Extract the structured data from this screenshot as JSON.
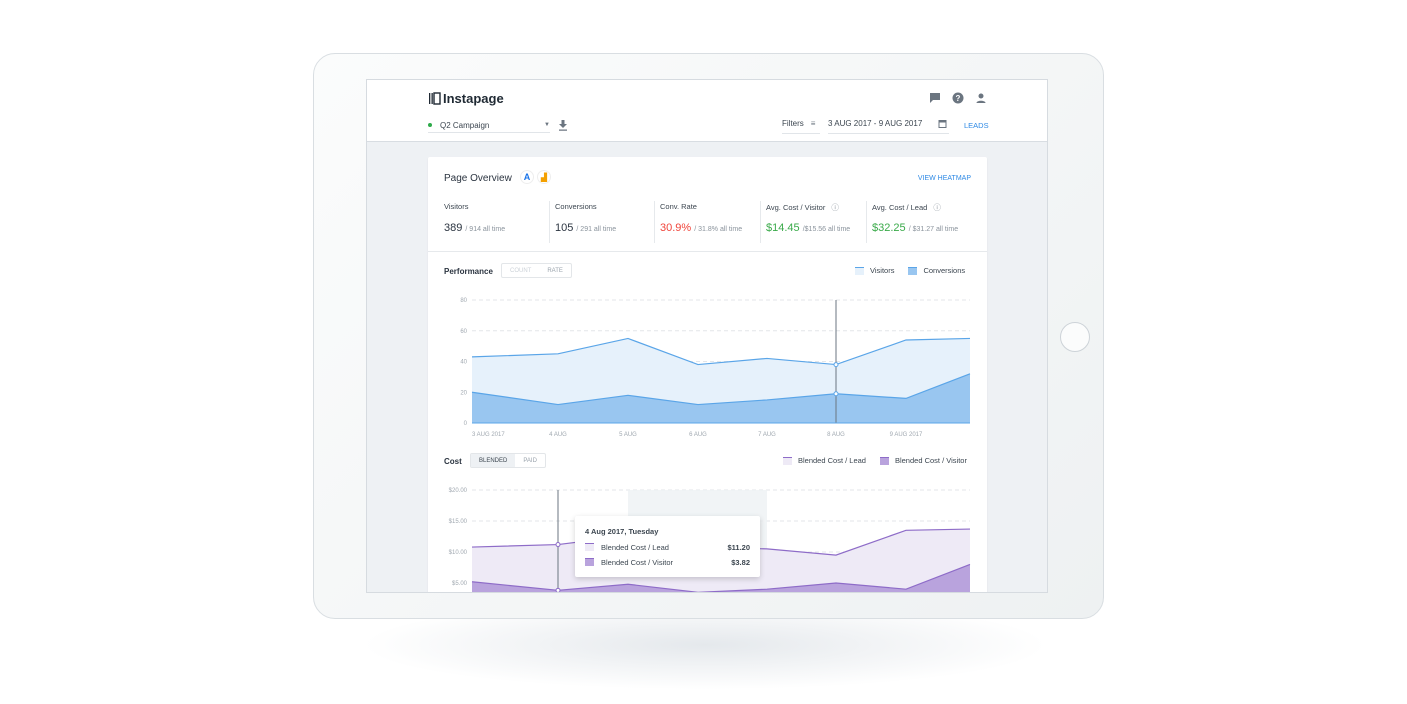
{
  "app": {
    "logo": "Instapage"
  },
  "header": {
    "campaign": "Q2 Campaign",
    "filters_label": "Filters",
    "date_range": "3 AUG 2017 - 9 AUG 2017",
    "leads_link": "LEADS",
    "icons": [
      "chat-icon",
      "help-icon",
      "user-icon",
      "download-icon",
      "filter-icon",
      "calendar-icon"
    ]
  },
  "overview": {
    "title": "Page Overview",
    "view_heatmap": "VIEW HEATMAP",
    "metrics": [
      {
        "label": "Visitors",
        "value": "389",
        "sub": "/ 914 all time",
        "color": "#2b3440"
      },
      {
        "label": "Conversions",
        "value": "105",
        "sub": "/ 291 all time",
        "color": "#2b3440"
      },
      {
        "label": "Conv. Rate",
        "value": "30.9%",
        "sub": "/ 31.8% all time",
        "color": "#f0443a"
      },
      {
        "label": "Avg. Cost / Visitor",
        "value": "$14.45",
        "sub": "/$15.56 all time",
        "color": "#3aaa4a"
      },
      {
        "label": "Avg. Cost / Lead",
        "value": "$32.25",
        "sub": "/ $31.27 all time",
        "color": "#3aaa4a"
      }
    ]
  },
  "colors": {
    "accent": "#2f8ae5",
    "blue_line": "#5aa5e8",
    "blue_light": "#e6f1fb",
    "blue_dark": "#99c6f0",
    "purple_line": "#8e6cc8",
    "purple_light": "#eeeaf6",
    "purple_dark": "#b9a3dd"
  },
  "chart_data": [
    {
      "type": "area",
      "title": "Performance",
      "toggle": [
        "COUNT",
        "RATE"
      ],
      "categories": [
        "3 AUG 2017",
        "4 AUG",
        "5 AUG",
        "6 AUG",
        "7 AUG",
        "8 AUG",
        "9 AUG 2017",
        ""
      ],
      "yticks": [
        "80",
        "60",
        "40",
        "20",
        "0"
      ],
      "ylim": [
        0,
        80
      ],
      "series": [
        {
          "name": "Visitors",
          "values": [
            43,
            45,
            55,
            38,
            42,
            38,
            54,
            55
          ]
        },
        {
          "name": "Conversions",
          "values": [
            20,
            12,
            18,
            12,
            15,
            19,
            16,
            32
          ]
        }
      ],
      "highlight_index": 5
    },
    {
      "type": "area",
      "title": "Cost",
      "toggle": [
        "BLENDED",
        "PAID"
      ],
      "yticks": [
        "$20.00",
        "$15.00",
        "$10.00",
        "$5.00"
      ],
      "ylim": [
        0,
        20
      ],
      "series": [
        {
          "name": "Blended Cost / Lead",
          "values": [
            10.8,
            11.2,
            12.6,
            10.8,
            10.5,
            9.5,
            13.5,
            13.7
          ]
        },
        {
          "name": "Blended Cost / Visitor",
          "values": [
            5.2,
            3.82,
            4.8,
            3.5,
            4.0,
            5.0,
            4.0,
            8.0
          ]
        }
      ],
      "highlight_index": 1,
      "tooltip": {
        "title": "4 Aug 2017, Tuesday",
        "rows": [
          {
            "label": "Blended Cost / Lead",
            "value": "$11.20"
          },
          {
            "label": "Blended Cost / Visitor",
            "value": "$3.82"
          }
        ]
      }
    }
  ]
}
